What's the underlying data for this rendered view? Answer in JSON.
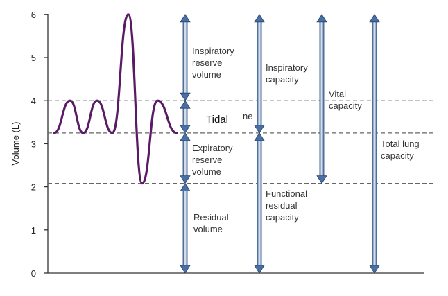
{
  "axis": {
    "ylabel": "Volume (L)",
    "ymin": 0,
    "ymax": 6,
    "ticks": [
      "0",
      "1",
      "2",
      "3",
      "4",
      "5",
      "6"
    ]
  },
  "levels": {
    "residual_top": 2.08,
    "frc": 3.25,
    "tidal_top": 4.0,
    "max": 6.0
  },
  "spirometry_trace": [
    3.25,
    4.0,
    3.25,
    4.0,
    3.25,
    6.0,
    2.08,
    4.0,
    3.25
  ],
  "labels": {
    "inspiratory_reserve_volume": [
      "Inspiratory",
      "reserve",
      "volume"
    ],
    "tidal_volume": "Tidal",
    "tidal_volume_fragment": "ne",
    "expiratory_reserve_volume": [
      "Expiratory",
      "reserve",
      "volume"
    ],
    "residual_volume": [
      "Residual",
      "volume"
    ],
    "inspiratory_capacity": [
      "Inspiratory",
      "capacity"
    ],
    "functional_residual_capacity": [
      "Functional",
      "residual",
      "capacity"
    ],
    "vital_capacity": [
      "Vital",
      "capacity"
    ],
    "total_lung_capacity": [
      "Total lung",
      "capacity"
    ]
  },
  "colors": {
    "trace": "#5b1a66",
    "arrow": "#4a6fa5",
    "arrow_light": "#eef2f8",
    "arrow_stroke": "#24456f"
  }
}
